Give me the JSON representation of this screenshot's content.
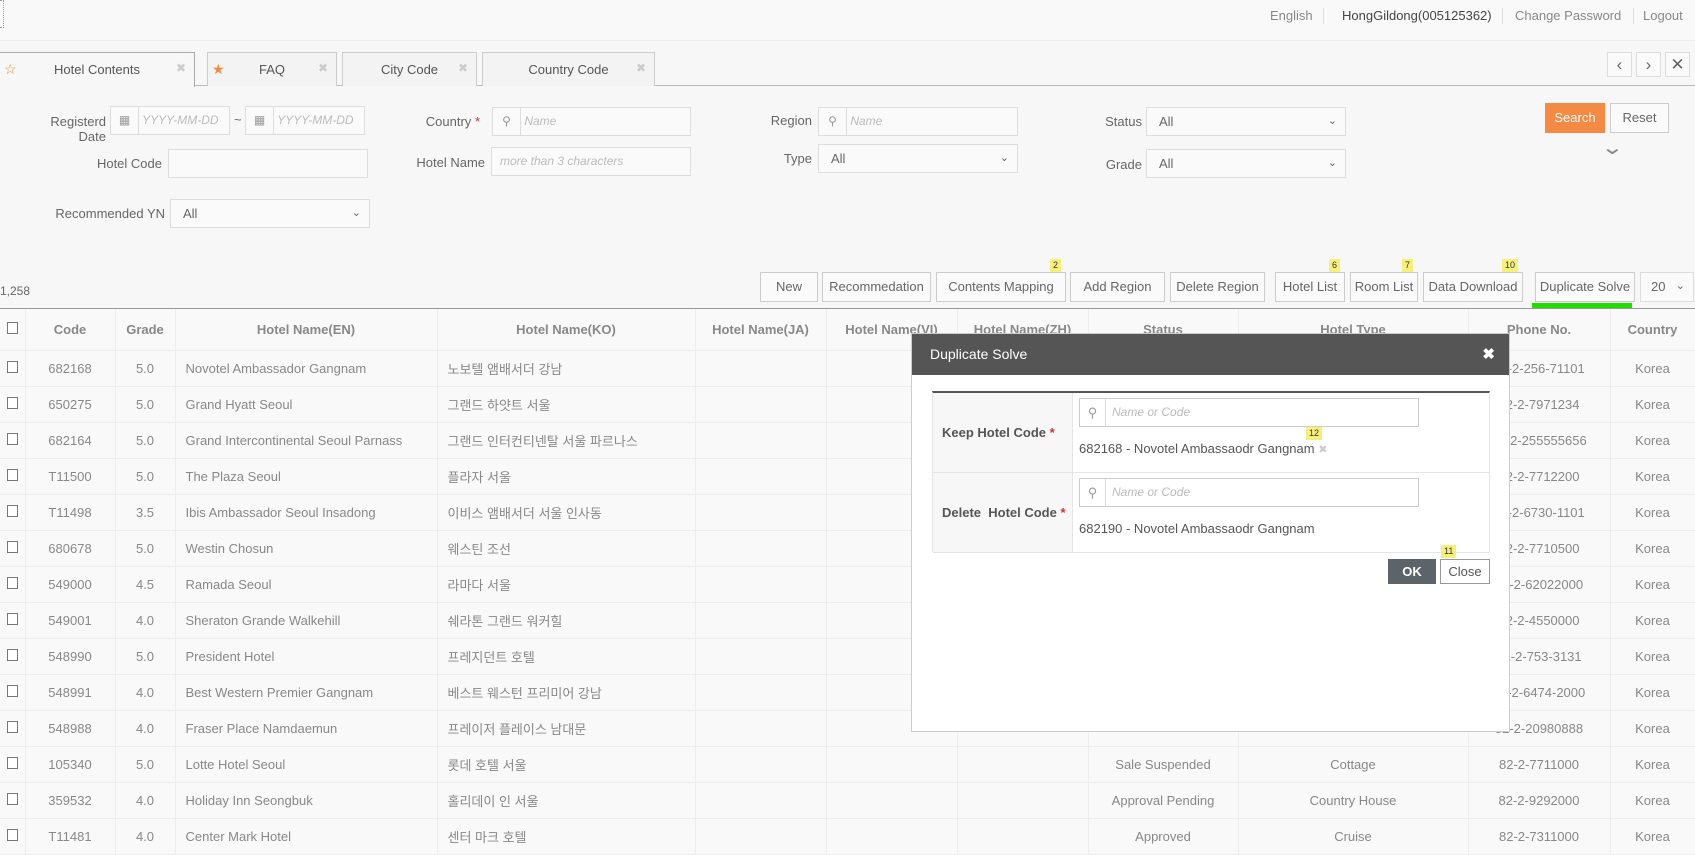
{
  "header": {
    "language": "English",
    "user": "HongGildong(005125362)",
    "change_password": "Change Password",
    "logout": "Logout"
  },
  "tabs": [
    {
      "label": "Hotel Contents",
      "starred": false
    },
    {
      "label": "FAQ",
      "starred": true
    },
    {
      "label": "City Code",
      "starred": false
    },
    {
      "label": "Country Code",
      "starred": false
    }
  ],
  "filters": {
    "registered_date_label": "Registerd Date",
    "date_placeholder": "YYYY-MM-DD",
    "date_sep": "~",
    "country_label": "Country",
    "country_placeholder": "Name",
    "region_label": "Region",
    "region_placeholder": "Name",
    "status_label": "Status",
    "status_value": "All",
    "hotel_code_label": "Hotel Code",
    "hotel_code_value": "",
    "hotel_name_label": "Hotel Name",
    "hotel_name_placeholder": "more than 3 characters",
    "type_label": "Type",
    "type_value": "All",
    "grade_label": "Grade",
    "grade_value": "All",
    "recommended_label": "Recommended YN",
    "recommended_value": "All",
    "search": "Search",
    "reset": "Reset",
    "required_mark": "*"
  },
  "toolbar": {
    "total": "1,258",
    "buttons": [
      {
        "label": "New"
      },
      {
        "label": "Recommedation"
      },
      {
        "label": "Contents Mapping",
        "badge": "2"
      },
      {
        "label": "Add Region"
      },
      {
        "label": "Delete Region"
      },
      {
        "label": "Hotel List",
        "badge": "6"
      },
      {
        "label": "Room List",
        "badge": "7"
      },
      {
        "label": "Data Download",
        "badge": "10"
      },
      {
        "label": "Duplicate Solve"
      }
    ],
    "page_size": "20",
    "highlight_color": "#22dd00"
  },
  "table": {
    "headers": [
      "Code",
      "Grade",
      "Hotel Name(EN)",
      "Hotel Name(KO)",
      "Hotel Name(JA)",
      "Hotel Name(VI)",
      "Hotel Name(ZH)",
      "Status",
      "Hotel Type",
      "Phone No.",
      "Country"
    ],
    "rows": [
      [
        "682168",
        "5.0",
        "Novotel Ambassador Gangnam",
        "노보텔 앰배서더 강남",
        "",
        "",
        "",
        "",
        "",
        "82-2-256-71101",
        "Korea"
      ],
      [
        "650275",
        "5.0",
        "Grand Hyatt Seoul",
        "그랜드 하얏트 서울",
        "",
        "",
        "",
        "",
        "",
        "82-2-7971234",
        "Korea"
      ],
      [
        "682164",
        "5.0",
        "Grand Intercontinental Seoul Parnass",
        "그랜드 인터컨티넨탈 서울 파르나스",
        "",
        "",
        "",
        "",
        "",
        "82-2-255555656",
        "Korea"
      ],
      [
        "T11500",
        "5.0",
        "The Plaza Seoul",
        "플라자 서울",
        "",
        "",
        "",
        "",
        "",
        "82-2-7712200",
        "Korea"
      ],
      [
        "T11498",
        "3.5",
        "Ibis Ambassador Seoul Insadong",
        "이비스 앰배서더 서울 인사동",
        "",
        "",
        "",
        "",
        "",
        "82-2-6730-1101",
        "Korea"
      ],
      [
        "680678",
        "5.0",
        "Westin Chosun",
        "웨스틴 조선",
        "",
        "",
        "",
        "",
        "",
        "82-2-7710500",
        "Korea"
      ],
      [
        "549000",
        "4.5",
        "Ramada Seoul",
        "라마다 서울",
        "",
        "",
        "",
        "",
        "",
        "82-2-62022000",
        "Korea"
      ],
      [
        "549001",
        "4.0",
        "Sheraton Grande Walkehill",
        "쉐라톤 그랜드 워커힐",
        "",
        "",
        "",
        "",
        "",
        "82-2-4550000",
        "Korea"
      ],
      [
        "548990",
        "5.0",
        "President Hotel",
        "프레지던트 호텔",
        "",
        "",
        "",
        "",
        "",
        "82-2-753-3131",
        "Korea"
      ],
      [
        "548991",
        "4.0",
        "Best Western Premier Gangnam",
        "베스트 웨스턴 프리미어 강남",
        "",
        "",
        "",
        "",
        "",
        "82-2-6474-2000",
        "Korea"
      ],
      [
        "548988",
        "4.0",
        "Fraser Place Namdaemun",
        "프레이저 플레이스 남대문",
        "",
        "",
        "",
        "",
        "",
        "82-2-20980888",
        "Korea"
      ],
      [
        "105340",
        "5.0",
        "Lotte Hotel Seoul",
        "롯데 호텔 서울",
        "",
        "",
        "",
        "Sale Suspended",
        "Cottage",
        "82-2-7711000",
        "Korea"
      ],
      [
        "359532",
        "4.0",
        "Holiday Inn Seongbuk",
        "홀리데이 인 서울",
        "",
        "",
        "",
        "Approval Pending",
        "Country House",
        "82-2-9292000",
        "Korea"
      ],
      [
        "T11481",
        "4.0",
        "Center Mark Hotel",
        "센터 마크 호텔",
        "",
        "",
        "",
        "Approved",
        "Cruise",
        "82-2-7311000",
        "Korea"
      ]
    ]
  },
  "modal": {
    "title": "Duplicate Solve",
    "keep_label": "Keep Hotel Code",
    "delete_label": "Delete  Hotel Code",
    "required_mark": "*",
    "search_placeholder": "Name or Code",
    "keep_value": "682168 - Novotel Ambassaodr Gangnam",
    "keep_badge": "12",
    "delete_value": "682190 - Novotel Ambassaodr Gangnam",
    "ok": "OK",
    "close": "Close",
    "close_badge": "11"
  }
}
